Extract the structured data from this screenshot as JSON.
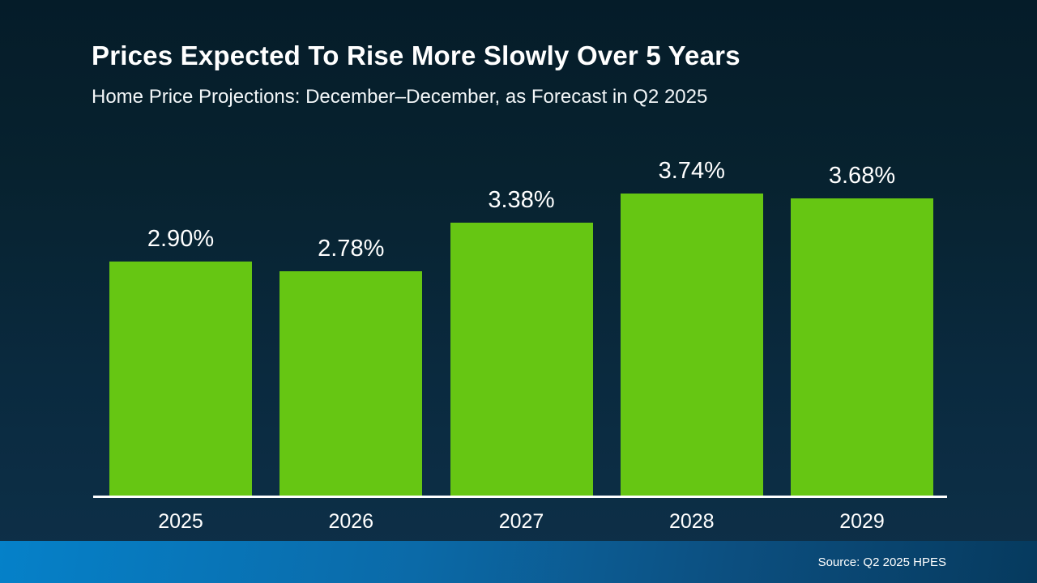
{
  "slide": {
    "title": "Prices Expected To Rise More Slowly Over 5 Years",
    "subtitle": "Home Price Projections: December–December, as Forecast in Q2 2025"
  },
  "chart_data": {
    "type": "bar",
    "title": "Prices Expected To Rise More Slowly Over 5 Years",
    "subtitle": "Home Price Projections: December–December, as Forecast in Q2 2025",
    "categories": [
      "2025",
      "2026",
      "2027",
      "2028",
      "2029"
    ],
    "values": [
      2.9,
      2.78,
      3.38,
      3.74,
      3.68
    ],
    "value_labels": [
      "2.90%",
      "2.78%",
      "3.38%",
      "3.74%",
      "3.68%"
    ],
    "xlabel": "",
    "ylabel": "",
    "ylim": [
      0,
      4.2
    ],
    "grid": false,
    "legend_position": "none",
    "bar_color": "#66c613"
  },
  "footer": {
    "source_label": "Source: Q2 2025 HPES"
  },
  "colors": {
    "background_top": "#051c29",
    "background_bottom": "#0e3049",
    "bar_green": "#66c613",
    "axis_white": "#ffffff",
    "footer_blue_left": "#0581c9",
    "footer_blue_right": "#063a5e",
    "text_white": "#ffffff"
  }
}
